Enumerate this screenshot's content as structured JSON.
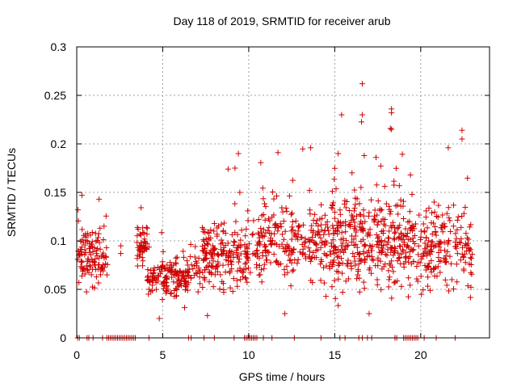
{
  "chart_data": {
    "type": "scatter",
    "title": "Day 118 of 2019, SRMTID for receiver arub",
    "xlabel": "GPS time / hours",
    "ylabel": "SRMTID / TECUs",
    "xlim": [
      0,
      24
    ],
    "ylim": [
      0,
      0.3
    ],
    "xticks": [
      0,
      5,
      10,
      15,
      20
    ],
    "xtick_labels": [
      "0",
      "5",
      "10",
      "15",
      "20"
    ],
    "yticks": [
      0,
      0.05,
      0.1,
      0.15,
      0.2,
      0.25,
      0.3
    ],
    "ytick_labels": [
      "0",
      "0.05",
      "0.1",
      "0.15",
      "0.2",
      "0.25",
      "0.3"
    ],
    "grid": true,
    "marker": "+",
    "color": "#d00000",
    "series": [
      {
        "name": "SRMTID",
        "segments": [
          {
            "x_start": 0.0,
            "x_end": 1.8,
            "y_center": 0.085,
            "y_spread": 0.022,
            "n": 120
          },
          {
            "x_start": 2.5,
            "x_end": 2.6,
            "y_center": 0.09,
            "y_spread": 0.005,
            "n": 2
          },
          {
            "x_start": 3.5,
            "x_end": 4.1,
            "y_center": 0.09,
            "y_spread": 0.018,
            "n": 45
          },
          {
            "x_start": 4.1,
            "x_end": 6.5,
            "y_center": 0.062,
            "y_spread": 0.016,
            "n": 150
          },
          {
            "x_start": 6.5,
            "x_end": 7.2,
            "y_center": 0.07,
            "y_spread": 0.015,
            "n": 25
          },
          {
            "x_start": 7.3,
            "x_end": 10.0,
            "y_center": 0.085,
            "y_spread": 0.025,
            "n": 190
          },
          {
            "x_start": 10.0,
            "x_end": 10.6,
            "y_center": 0.09,
            "y_spread": 0.02,
            "n": 20
          },
          {
            "x_start": 10.6,
            "x_end": 14.8,
            "y_center": 0.1,
            "y_spread": 0.032,
            "n": 230
          },
          {
            "x_start": 14.8,
            "x_end": 19.0,
            "y_center": 0.1,
            "y_spread": 0.038,
            "n": 330
          },
          {
            "x_start": 19.0,
            "x_end": 23.0,
            "y_center": 0.095,
            "y_spread": 0.032,
            "n": 230
          }
        ],
        "outliers": [
          {
            "x": 16.6,
            "y": 0.262
          },
          {
            "x": 16.6,
            "y": 0.23
          },
          {
            "x": 15.4,
            "y": 0.23
          },
          {
            "x": 18.3,
            "y": 0.236
          },
          {
            "x": 18.3,
            "y": 0.232
          },
          {
            "x": 18.3,
            "y": 0.215
          },
          {
            "x": 22.4,
            "y": 0.214
          },
          {
            "x": 22.4,
            "y": 0.205
          },
          {
            "x": 21.6,
            "y": 0.196
          },
          {
            "x": 13.6,
            "y": 0.196
          },
          {
            "x": 11.7,
            "y": 0.191
          },
          {
            "x": 9.4,
            "y": 0.19
          },
          {
            "x": 8.8,
            "y": 0.174
          },
          {
            "x": 9.2,
            "y": 0.175
          },
          {
            "x": 0.3,
            "y": 0.147
          },
          {
            "x": 1.3,
            "y": 0.143
          },
          {
            "x": 4.8,
            "y": 0.02
          },
          {
            "x": 7.6,
            "y": 0.023
          },
          {
            "x": 17.0,
            "y": 0.025
          },
          {
            "x": 12.1,
            "y": 0.025
          },
          {
            "x": 15.2,
            "y": 0.19
          },
          {
            "x": 19.4,
            "y": 0.168
          }
        ],
        "zero_ranges": [
          [
            0.05,
            0.2
          ],
          [
            0.6,
            0.75
          ],
          [
            0.95,
            1.05
          ],
          [
            1.5,
            1.6
          ],
          [
            1.75,
            3.5
          ],
          [
            4.2,
            4.3
          ],
          [
            6.5,
            6.55
          ],
          [
            6.65,
            6.7
          ],
          [
            7.4,
            7.5
          ],
          [
            8.0,
            8.1
          ],
          [
            9.15,
            9.25
          ],
          [
            9.75,
            10.55
          ],
          [
            10.85,
            10.95
          ],
          [
            11.35,
            11.45
          ],
          [
            12.65,
            12.75
          ],
          [
            14.2,
            14.3
          ],
          [
            15.3,
            15.4
          ],
          [
            15.6,
            15.7
          ],
          [
            16.4,
            16.5
          ],
          [
            16.6,
            16.7
          ],
          [
            16.9,
            17.0
          ],
          [
            17.15,
            17.25
          ],
          [
            18.5,
            18.65
          ],
          [
            19.0,
            19.9
          ],
          [
            20.2,
            20.3
          ],
          [
            20.9,
            21.0
          ],
          [
            22.0,
            22.1
          ]
        ]
      }
    ]
  }
}
